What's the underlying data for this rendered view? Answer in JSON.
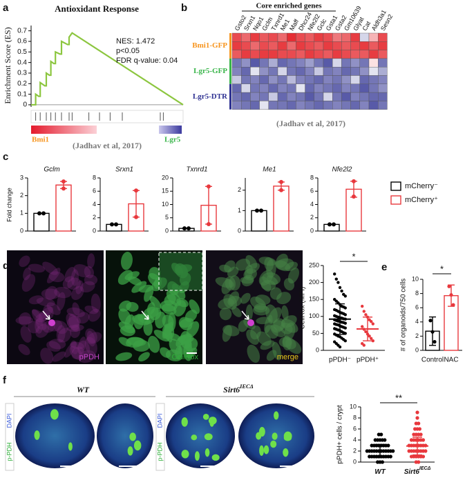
{
  "panels": {
    "panel_labels": [
      "a",
      "b",
      "c",
      "d",
      "e",
      "f"
    ],
    "gsea": {
      "type": "line",
      "title": "Antioxidant Response",
      "ylabel": "Enrichment Score (ES)",
      "ylim": [
        -0.02,
        0.75
      ],
      "yticks": [
        0,
        0.1,
        0.2,
        0.3,
        0.4,
        0.5,
        0.6,
        0.7
      ],
      "xlim": [
        0,
        100
      ],
      "x": [
        0,
        3,
        3,
        5,
        6,
        6,
        9,
        10,
        10,
        12,
        13,
        13,
        15,
        16,
        16,
        19,
        20,
        20,
        24,
        25,
        25,
        27,
        100
      ],
      "values": [
        0,
        0,
        0.1,
        0.08,
        0.08,
        0.21,
        0.18,
        0.18,
        0.3,
        0.28,
        0.28,
        0.41,
        0.39,
        0.39,
        0.5,
        0.48,
        0.48,
        0.6,
        0.57,
        0.57,
        0.64,
        0.68,
        0
      ],
      "color": "#8cc63f",
      "hits": [
        3,
        6,
        10,
        13,
        16,
        20,
        25,
        27,
        38,
        45,
        52,
        60,
        85,
        87
      ],
      "stats": [
        "NES: 1.472",
        "p<0.05",
        "FDR q-value: 0.04"
      ],
      "left_label": "Bmi1",
      "right_label": "Lgr5",
      "source": "(Jadhav et al, 2017)"
    },
    "heatmap": {
      "type": "heatmap",
      "header": "Core enriched genes",
      "columns": [
        "Gsto2",
        "Srxn1",
        "Nqo1",
        "Gclm",
        "Txnrd1",
        "Me1",
        "Maff",
        "Dhcr24",
        "Nfe2l2",
        "Gclc",
        "Gsta1",
        "Gsta2",
        "Gm10639",
        "Glyat",
        "Cat",
        "Aldh3a1",
        "Sesn2"
      ],
      "colormap": [
        "#2e3192",
        "#ffffff",
        "#e31e24"
      ],
      "clim": [
        -1.5,
        1.5
      ],
      "row_groups": [
        {
          "name": "Bmi1-GFP",
          "color": "#f7941d",
          "values": [
            [
              1.2,
              1,
              1.3,
              1.1,
              1.2,
              1,
              1.4,
              1.2,
              1.1,
              1.3,
              1.2,
              0.9,
              1,
              1.3,
              -0.3,
              0.5,
              1.2
            ],
            [
              1.3,
              1.2,
              1,
              1.2,
              1.1,
              1.3,
              1,
              1.3,
              1.2,
              1.1,
              1.3,
              1.2,
              1.1,
              1.2,
              1.3,
              1.1,
              1.3
            ],
            [
              1.1,
              1.3,
              1.2,
              1.3,
              1.3,
              1.2,
              1.2,
              1.1,
              1.3,
              1.2,
              1.1,
              1.3,
              1.2,
              1.1,
              1.1,
              1.3,
              1.1
            ]
          ]
        },
        {
          "name": "Lgr5-GFP",
          "color": "#39b54a",
          "values": [
            [
              -1,
              -0.8,
              -1.2,
              -1,
              -0.6,
              -1.1,
              -1,
              -0.9,
              -0.7,
              -1,
              -1.2,
              -0.3,
              -1,
              -0.8,
              -1,
              0.2,
              -1
            ],
            [
              -0.9,
              -1.1,
              -0.2,
              -0.8,
              -1,
              -0.3,
              -1,
              -1.1,
              -0.9,
              -0.4,
              -1,
              -0.9,
              -1.1,
              -1,
              -0.8,
              -0.2,
              -0.6
            ],
            [
              -0.4,
              -1,
              -0.9,
              -1.1,
              -0.8,
              -1,
              -0.5,
              -0.9,
              -1,
              -1.1,
              -0.9,
              -1,
              -0.8,
              -0.3,
              -1.1,
              -1,
              -0.9
            ]
          ]
        },
        {
          "name": "Lgr5-DTR",
          "color": "#2e3192",
          "values": [
            [
              -1.1,
              -0.3,
              -1,
              -0.9,
              -1.1,
              -0.9,
              -1,
              -0.2,
              -1.1,
              -0.9,
              -1,
              -1.1,
              -0.9,
              -1,
              -1.2,
              -1,
              -0.8
            ],
            [
              -1,
              -1.1,
              -0.9,
              -1,
              -0.4,
              -1.1,
              -0.9,
              -1,
              -1.2,
              -1,
              -0.3,
              -1,
              -1.2,
              -0.9,
              -1,
              -1.1,
              -1.1
            ],
            [
              -0.9,
              -1,
              -1.1,
              -0.2,
              -1,
              -1,
              -1.1,
              -0.9,
              -1,
              -1.1,
              -1,
              -0.9,
              -1,
              -1.1,
              -0.9,
              -1.2,
              -1
            ]
          ]
        }
      ],
      "source": "(Jadhav et al, 2017)"
    },
    "foldchange": {
      "ylabel": "Fold change",
      "legend": [
        {
          "name": "mCherry⁻",
          "color": "#000000"
        },
        {
          "name": "mCherry⁺",
          "color": "#e8383d"
        }
      ],
      "charts": [
        {
          "type": "bar",
          "title": "Gclm",
          "ylim": [
            0,
            3
          ],
          "yticks": [
            0,
            1,
            2,
            3
          ],
          "values": [
            1,
            2.6
          ],
          "errors": [
            0,
            0.2
          ],
          "points": [
            [
              1,
              1
            ],
            [
              2.8,
              2.4
            ]
          ]
        },
        {
          "type": "bar",
          "title": "Srxn1",
          "ylim": [
            0,
            8
          ],
          "yticks": [
            0,
            2,
            4,
            6,
            8
          ],
          "values": [
            1,
            4.1
          ],
          "errors": [
            0,
            2
          ],
          "points": [
            [
              1,
              1
            ],
            [
              6.1,
              2.1
            ]
          ]
        },
        {
          "type": "bar",
          "title": "Txnrd1",
          "ylim": [
            0,
            20
          ],
          "yticks": [
            0,
            5,
            10,
            15,
            20
          ],
          "values": [
            1,
            9.7
          ],
          "errors": [
            0,
            7.1
          ],
          "points": [
            [
              1,
              1
            ],
            [
              16.8,
              2.6
            ]
          ]
        },
        {
          "type": "bar",
          "title": "Me1",
          "ylim": [
            0,
            2.6
          ],
          "yticks": [
            0,
            1,
            2
          ],
          "values": [
            1,
            2.2
          ],
          "errors": [
            0,
            0.2
          ],
          "points": [
            [
              1,
              1
            ],
            [
              2.4,
              2
            ]
          ]
        },
        {
          "type": "bar",
          "title": "Nfe2l2",
          "ylim": [
            0,
            8
          ],
          "yticks": [
            0,
            2,
            4,
            6,
            8
          ],
          "values": [
            1,
            6.3
          ],
          "errors": [
            0,
            1.2
          ],
          "points": [
            [
              1,
              1
            ],
            [
              7.5,
              5.2
            ]
          ]
        }
      ]
    },
    "cellrox": {
      "images": [
        {
          "label": "pPDH",
          "color": "#c445c8"
        },
        {
          "label": "CellRox",
          "color": "#2fae3a"
        },
        {
          "label": "merge",
          "color": "#e8c61a"
        }
      ],
      "plot": {
        "type": "dot",
        "ylabel": "CellRox (MFI)",
        "ylim": [
          0,
          250
        ],
        "yticks": [
          0,
          50,
          100,
          150,
          200,
          250
        ],
        "categories": [
          "pPDH⁻",
          "pPDH⁺"
        ],
        "colors": [
          "#000000",
          "#e8383d"
        ],
        "means": [
          92,
          63
        ],
        "sd": [
          45,
          35
        ],
        "points": [
          [
            225,
            210,
            200,
            185,
            175,
            165,
            160,
            150,
            145,
            140,
            135,
            130,
            128,
            125,
            120,
            118,
            115,
            112,
            110,
            108,
            105,
            102,
            100,
            98,
            96,
            95,
            93,
            92,
            90,
            88,
            86,
            85,
            83,
            82,
            80,
            78,
            76,
            75,
            72,
            70,
            68,
            66,
            64,
            62,
            60,
            58,
            55,
            52,
            50,
            48,
            45,
            42,
            40,
            36,
            32,
            28,
            25,
            20,
            15,
            10
          ],
          [
            130,
            115,
            105,
            98,
            90,
            85,
            78,
            70,
            62,
            55,
            48,
            42,
            35,
            28,
            20,
            15
          ]
        ],
        "significance": "*"
      }
    },
    "organoids": {
      "type": "bar",
      "ylabel": "# of organoids/750 cells",
      "ylim": [
        0,
        10
      ],
      "yticks": [
        0,
        2,
        4,
        6,
        8,
        10
      ],
      "categories": [
        "Control",
        "NAC"
      ],
      "colors": [
        "#000000",
        "#e8383d"
      ],
      "values": [
        2.7,
        7.7
      ],
      "errors": [
        2,
        1.5
      ],
      "points": [
        [
          4.2,
          2.6,
          1.2
        ],
        [
          9,
          7.8,
          6.4
        ]
      ],
      "significance": "*"
    },
    "sirt6": {
      "groups": [
        {
          "text": "WT"
        },
        {
          "text": "Sirt6",
          "sup": "IECΔ"
        }
      ],
      "stain_labels": [
        {
          "text": "DAPI",
          "color": "#3a5bd9"
        },
        {
          "text": "p-PDH",
          "color": "#2fae3a"
        }
      ],
      "plot": {
        "type": "dot",
        "ylabel": "pPDH+ cells / crypt",
        "ylim": [
          0,
          10
        ],
        "yticks": [
          0,
          2,
          4,
          6,
          8,
          10
        ],
        "categories": [
          {
            "text": "WT"
          },
          {
            "text": "Sirt6",
            "sup": "IECΔ"
          }
        ],
        "colors": [
          "#000000",
          "#e8383d"
        ],
        "means": [
          2,
          2.9
        ],
        "sd": [
          1.2,
          1.6
        ],
        "points": [
          [
            0,
            0,
            0,
            1,
            1,
            1,
            1,
            1,
            1,
            1,
            1,
            1,
            1,
            2,
            2,
            2,
            2,
            2,
            2,
            2,
            2,
            2,
            2,
            2,
            2,
            3,
            3,
            3,
            3,
            3,
            3,
            3,
            3,
            4,
            4,
            4,
            4,
            4,
            5,
            5
          ],
          [
            0,
            0,
            1,
            1,
            1,
            1,
            1,
            1,
            2,
            2,
            2,
            2,
            2,
            2,
            2,
            2,
            3,
            3,
            3,
            3,
            3,
            3,
            3,
            3,
            4,
            4,
            4,
            4,
            4,
            4,
            5,
            5,
            5,
            5,
            6,
            6,
            6,
            7,
            7,
            8,
            9
          ]
        ],
        "significance": "**"
      }
    }
  }
}
